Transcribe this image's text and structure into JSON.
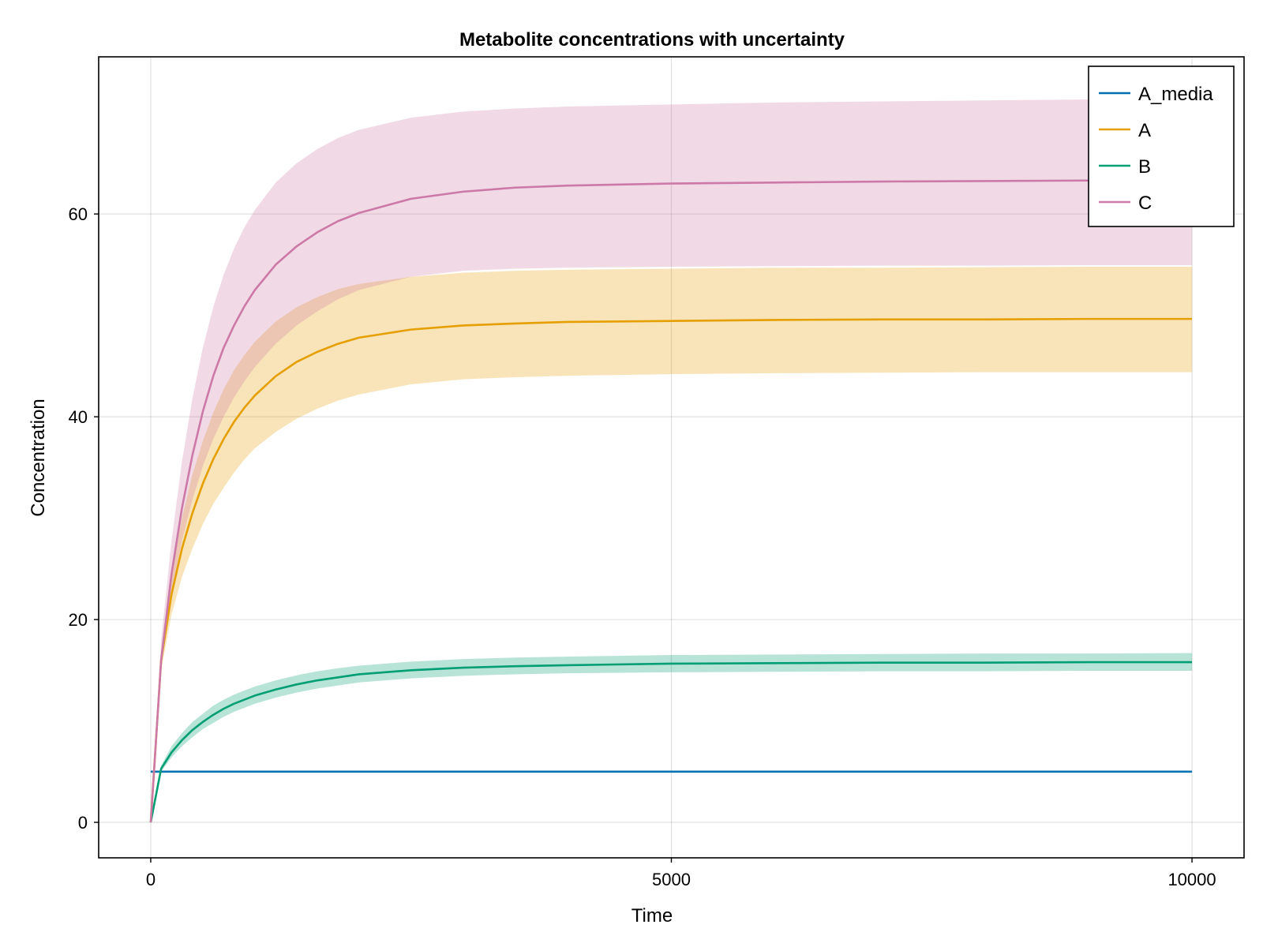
{
  "chart_data": {
    "type": "line",
    "title": "Metabolite concentrations with uncertainty",
    "xlabel": "Time",
    "ylabel": "Concentration",
    "xlim": [
      -500,
      10500
    ],
    "ylim": [
      -3.5,
      75.5
    ],
    "xticks": [
      0,
      5000,
      10000
    ],
    "xtick_labels": [
      "0",
      "5000",
      "10000"
    ],
    "yticks": [
      0,
      20,
      40,
      60
    ],
    "ytick_labels": [
      "0",
      "20",
      "40",
      "60"
    ],
    "grid": true,
    "legend_position": "top-right",
    "uncertainty_bands": true,
    "x": [
      0,
      100,
      200,
      300,
      400,
      500,
      600,
      700,
      800,
      900,
      1000,
      1200,
      1400,
      1600,
      1800,
      2000,
      2500,
      3000,
      3500,
      4000,
      5000,
      6000,
      7000,
      8000,
      9000,
      10000
    ],
    "series": [
      {
        "name": "A_media",
        "color": "#0072b2",
        "values": [
          5,
          5,
          5,
          5,
          5,
          5,
          5,
          5,
          5,
          5,
          5,
          5,
          5,
          5,
          5,
          5,
          5,
          5,
          5,
          5,
          5,
          5,
          5,
          5,
          5,
          5
        ],
        "lower": [
          5,
          5,
          5,
          5,
          5,
          5,
          5,
          5,
          5,
          5,
          5,
          5,
          5,
          5,
          5,
          5,
          5,
          5,
          5,
          5,
          5,
          5,
          5,
          5,
          5,
          5
        ],
        "upper": [
          5,
          5,
          5,
          5,
          5,
          5,
          5,
          5,
          5,
          5,
          5,
          5,
          5,
          5,
          5,
          5,
          5,
          5,
          5,
          5,
          5,
          5,
          5,
          5,
          5,
          5
        ]
      },
      {
        "name": "A",
        "color": "#e69f00",
        "values": [
          0,
          16.0,
          22.5,
          27.0,
          30.5,
          33.4,
          35.8,
          37.8,
          39.5,
          40.9,
          42.1,
          44.0,
          45.4,
          46.4,
          47.2,
          47.8,
          48.6,
          49.0,
          49.2,
          49.35,
          49.45,
          49.55,
          49.6,
          49.6,
          49.65,
          49.65
        ],
        "lower": [
          0,
          15.0,
          20.5,
          24.2,
          27.0,
          29.4,
          31.4,
          33.0,
          34.5,
          35.8,
          36.9,
          38.5,
          39.8,
          40.8,
          41.6,
          42.2,
          43.2,
          43.7,
          43.9,
          44.05,
          44.2,
          44.3,
          44.35,
          44.4,
          44.4,
          44.4
        ],
        "upper": [
          0,
          17.0,
          24.8,
          30.0,
          34.3,
          37.6,
          40.4,
          42.7,
          44.6,
          46.1,
          47.4,
          49.4,
          50.8,
          51.8,
          52.6,
          53.1,
          53.8,
          54.2,
          54.4,
          54.5,
          54.6,
          54.7,
          54.7,
          54.75,
          54.8,
          54.8
        ]
      },
      {
        "name": "B",
        "color": "#009e73",
        "values": [
          0,
          5.3,
          6.9,
          8.1,
          9.1,
          9.9,
          10.6,
          11.2,
          11.7,
          12.1,
          12.5,
          13.1,
          13.6,
          14.0,
          14.3,
          14.6,
          15.0,
          15.25,
          15.4,
          15.5,
          15.65,
          15.7,
          15.75,
          15.75,
          15.8,
          15.8
        ],
        "lower": [
          0,
          5.0,
          6.4,
          7.5,
          8.4,
          9.2,
          9.8,
          10.4,
          10.9,
          11.3,
          11.7,
          12.3,
          12.8,
          13.2,
          13.5,
          13.8,
          14.2,
          14.45,
          14.6,
          14.7,
          14.8,
          14.85,
          14.9,
          14.9,
          14.95,
          14.95
        ],
        "upper": [
          0,
          5.6,
          7.5,
          8.8,
          9.9,
          10.7,
          11.5,
          12.1,
          12.6,
          13.0,
          13.4,
          14.0,
          14.5,
          14.9,
          15.2,
          15.45,
          15.85,
          16.1,
          16.25,
          16.35,
          16.5,
          16.55,
          16.6,
          16.65,
          16.65,
          16.7
        ]
      },
      {
        "name": "C",
        "color": "#cc79a7",
        "values": [
          0,
          16.0,
          24.5,
          31.0,
          36.2,
          40.5,
          44.0,
          46.8,
          49.0,
          50.9,
          52.5,
          55.0,
          56.8,
          58.2,
          59.3,
          60.1,
          61.5,
          62.2,
          62.6,
          62.8,
          63.0,
          63.1,
          63.2,
          63.25,
          63.3,
          63.3
        ],
        "lower": [
          0,
          15.2,
          22.5,
          27.8,
          31.8,
          35.1,
          37.8,
          40.0,
          41.9,
          43.5,
          44.9,
          47.2,
          49.0,
          50.4,
          51.6,
          52.5,
          53.8,
          54.4,
          54.6,
          54.7,
          54.8,
          54.85,
          54.9,
          54.9,
          54.95,
          54.95
        ],
        "upper": [
          0,
          18.0,
          27.8,
          35.6,
          41.8,
          46.8,
          50.8,
          54.0,
          56.6,
          58.7,
          60.4,
          63.1,
          65.0,
          66.4,
          67.5,
          68.3,
          69.5,
          70.1,
          70.4,
          70.6,
          70.8,
          71.0,
          71.1,
          71.2,
          71.3,
          71.3
        ]
      }
    ]
  }
}
